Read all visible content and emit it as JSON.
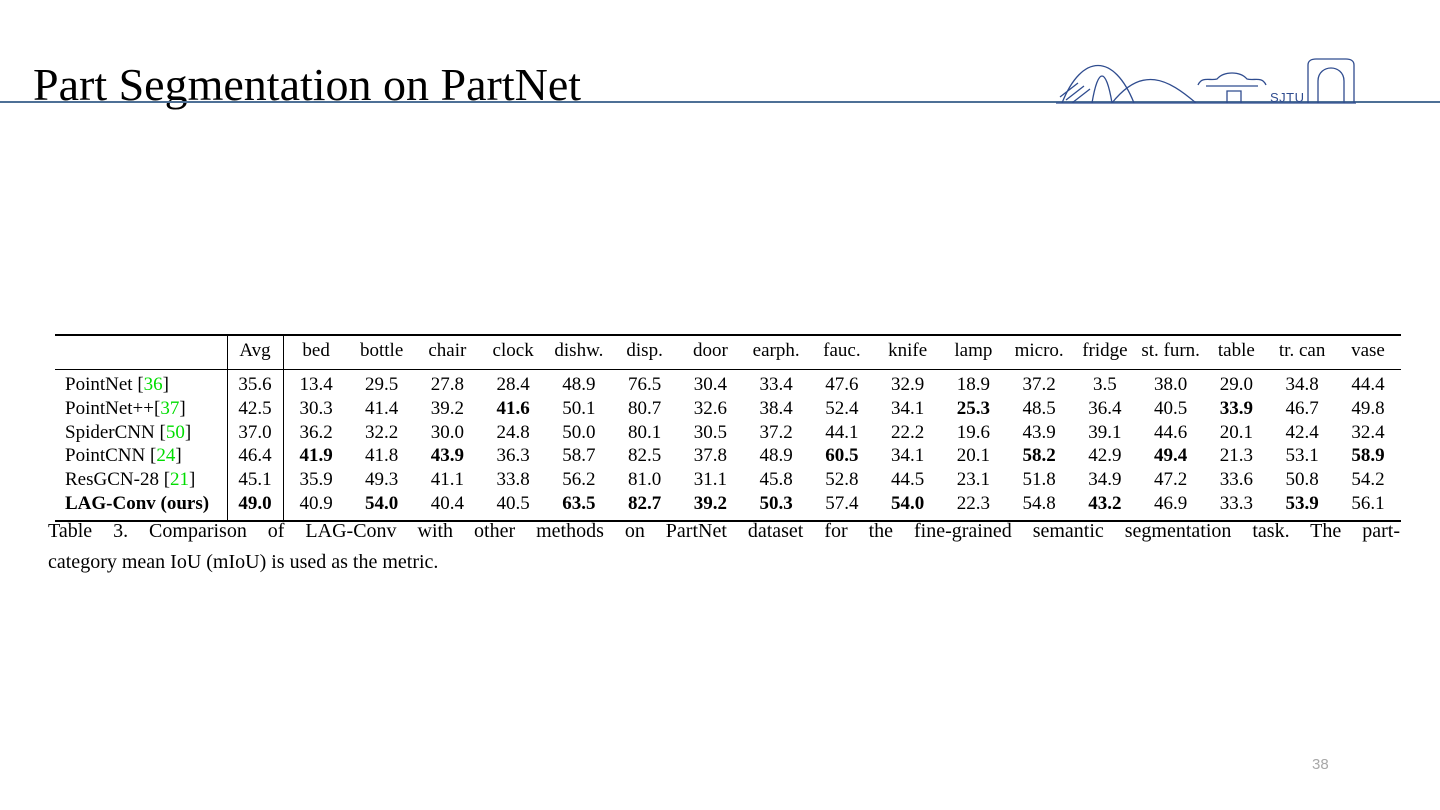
{
  "slide": {
    "title": "Part Segmentation on PartNet",
    "page_number": "38",
    "accent_line_color": "#4d7096",
    "logo": {
      "text": "SJTU",
      "color": "#2f4c8f"
    }
  },
  "table": {
    "citation_color": "#00dd00",
    "columns": [
      "Avg",
      "bed",
      "bottle",
      "chair",
      "clock",
      "dishw.",
      "disp.",
      "door",
      "earph.",
      "fauc.",
      "knife",
      "lamp",
      "micro.",
      "fridge",
      "st. furn.",
      "table",
      "tr. can",
      "vase"
    ],
    "rows": [
      {
        "method": "PointNet",
        "sep": " ",
        "ref": "36",
        "bold_method": false,
        "values": [
          "35.6",
          "13.4",
          "29.5",
          "27.8",
          "28.4",
          "48.9",
          "76.5",
          "30.4",
          "33.4",
          "47.6",
          "32.9",
          "18.9",
          "37.2",
          "3.5",
          "38.0",
          "29.0",
          "34.8",
          "44.4"
        ],
        "bold": []
      },
      {
        "method": "PointNet++",
        "sep": "",
        "ref": "37",
        "bold_method": false,
        "values": [
          "42.5",
          "30.3",
          "41.4",
          "39.2",
          "41.6",
          "50.1",
          "80.7",
          "32.6",
          "38.4",
          "52.4",
          "34.1",
          "25.3",
          "48.5",
          "36.4",
          "40.5",
          "33.9",
          "46.7",
          "49.8"
        ],
        "bold": [
          4,
          11,
          15
        ]
      },
      {
        "method": "SpiderCNN",
        "sep": " ",
        "ref": "50",
        "bold_method": false,
        "values": [
          "37.0",
          "36.2",
          "32.2",
          "30.0",
          "24.8",
          "50.0",
          "80.1",
          "30.5",
          "37.2",
          "44.1",
          "22.2",
          "19.6",
          "43.9",
          "39.1",
          "44.6",
          "20.1",
          "42.4",
          "32.4"
        ],
        "bold": []
      },
      {
        "method": "PointCNN",
        "sep": " ",
        "ref": "24",
        "bold_method": false,
        "values": [
          "46.4",
          "41.9",
          "41.8",
          "43.9",
          "36.3",
          "58.7",
          "82.5",
          "37.8",
          "48.9",
          "60.5",
          "34.1",
          "20.1",
          "58.2",
          "42.9",
          "49.4",
          "21.3",
          "53.1",
          "58.9"
        ],
        "bold": [
          1,
          3,
          9,
          12,
          14,
          17
        ]
      },
      {
        "method": "ResGCN-28",
        "sep": " ",
        "ref": "21",
        "bold_method": false,
        "values": [
          "45.1",
          "35.9",
          "49.3",
          "41.1",
          "33.8",
          "56.2",
          "81.0",
          "31.1",
          "45.8",
          "52.8",
          "44.5",
          "23.1",
          "51.8",
          "34.9",
          "47.2",
          "33.6",
          "50.8",
          "54.2"
        ],
        "bold": []
      },
      {
        "method": "LAG-Conv (ours)",
        "sep": "",
        "ref": null,
        "bold_method": true,
        "values": [
          "49.0",
          "40.9",
          "54.0",
          "40.4",
          "40.5",
          "63.5",
          "82.7",
          "39.2",
          "50.3",
          "57.4",
          "54.0",
          "22.3",
          "54.8",
          "43.2",
          "46.9",
          "33.3",
          "53.9",
          "56.1"
        ],
        "bold": [
          0,
          2,
          5,
          6,
          7,
          8,
          10,
          13,
          16
        ]
      }
    ],
    "caption_line1": "Table 3. Comparison of LAG-Conv with other methods on PartNet dataset for the fine-grained semantic segmentation task. The part-",
    "caption_line2": "category mean IoU (mIoU) is used as the metric."
  }
}
